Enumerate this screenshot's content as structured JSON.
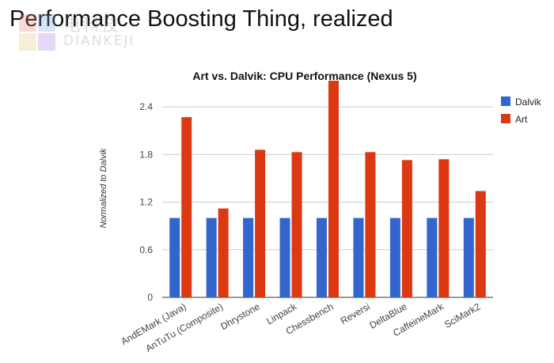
{
  "slide": {
    "title": "Performance Boosting Thing, realized"
  },
  "watermark": {
    "text_cn": "电科技",
    "text_en": "DIANKEJI"
  },
  "chart_data": {
    "type": "bar",
    "title": "Art vs. Dalvik: CPU Performance (Nexus 5)",
    "xlabel": "",
    "ylabel": "Normalized to Dalvik",
    "categories": [
      "AndEMark (Java)",
      "AnTuTu (Composite)",
      "Dhrystone",
      "Linpack",
      "Chessbench",
      "Reversi",
      "DeltaBlue",
      "CaffeineMark",
      "SciMark2"
    ],
    "series": [
      {
        "name": "Dalvik",
        "color": "#3366cc",
        "values": [
          1,
          1,
          1,
          1,
          1,
          1,
          1,
          1,
          1
        ]
      },
      {
        "name": "Art",
        "color": "#dc3912",
        "values": [
          2.27,
          1.12,
          1.86,
          1.83,
          2.73,
          1.83,
          1.73,
          1.74,
          1.34
        ]
      }
    ],
    "yticks": [
      "0",
      "0.6",
      "1.2",
      "1.8",
      "2.4"
    ],
    "ylim": [
      0,
      2.75
    ],
    "grid": true,
    "legend": "right"
  }
}
